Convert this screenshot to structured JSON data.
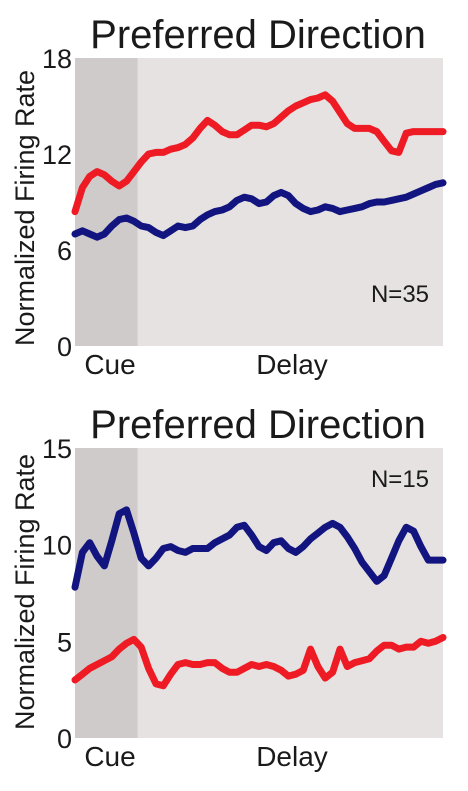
{
  "colors": {
    "panel_bg": "#e6e2e1",
    "cue_bg": "#cfcbca",
    "red": "#ee1b24",
    "blue": "#12157f",
    "text": "#1a1a1a"
  },
  "chart_data": [
    {
      "type": "line",
      "title": "Preferred Direction",
      "ylabel": "Normalized Firing Rate",
      "xlabel": "",
      "ylim": [
        0,
        18
      ],
      "yticks": [
        "0",
        "6",
        "12",
        "18"
      ],
      "xlim": [
        0,
        100
      ],
      "epochs": [
        {
          "label": "Cue",
          "x_start": 0,
          "x_end": 17,
          "shaded": true
        },
        {
          "label": "Delay",
          "x_start": 17,
          "x_end": 100,
          "shaded": false
        }
      ],
      "annotation": "N=35",
      "grid": false,
      "series": [
        {
          "color": "#ee1b24",
          "x": [
            0,
            2,
            4,
            6,
            8,
            10,
            12,
            14,
            16,
            18,
            20,
            22,
            24,
            26,
            28,
            30,
            32,
            34,
            36,
            38,
            40,
            42,
            44,
            46,
            48,
            50,
            52,
            54,
            56,
            58,
            60,
            62,
            64,
            66,
            68,
            70,
            72,
            74,
            76,
            78,
            80,
            82,
            84,
            86,
            88,
            90,
            92,
            94,
            96,
            98,
            100
          ],
          "values": [
            8.4,
            9.9,
            10.6,
            10.9,
            10.7,
            10.3,
            10.0,
            10.3,
            10.9,
            11.5,
            12.0,
            12.1,
            12.1,
            12.3,
            12.4,
            12.6,
            13.0,
            13.6,
            14.1,
            13.8,
            13.4,
            13.2,
            13.2,
            13.5,
            13.8,
            13.8,
            13.7,
            13.9,
            14.3,
            14.7,
            15.0,
            15.2,
            15.4,
            15.5,
            15.7,
            15.3,
            14.6,
            13.9,
            13.6,
            13.6,
            13.6,
            13.4,
            12.8,
            12.2,
            12.1,
            13.3,
            13.4,
            13.4,
            13.4,
            13.4,
            13.4
          ]
        },
        {
          "color": "#12157f",
          "x": [
            0,
            2,
            4,
            6,
            8,
            10,
            12,
            14,
            16,
            18,
            20,
            22,
            24,
            26,
            28,
            30,
            32,
            34,
            36,
            38,
            40,
            42,
            44,
            46,
            48,
            50,
            52,
            54,
            56,
            58,
            60,
            62,
            64,
            66,
            68,
            70,
            72,
            74,
            76,
            78,
            80,
            82,
            84,
            86,
            88,
            90,
            92,
            94,
            96,
            98,
            100
          ],
          "values": [
            7.0,
            7.2,
            7.0,
            6.8,
            7.0,
            7.5,
            7.9,
            8.0,
            7.8,
            7.5,
            7.4,
            7.1,
            6.9,
            7.2,
            7.5,
            7.4,
            7.5,
            7.9,
            8.2,
            8.4,
            8.5,
            8.7,
            9.1,
            9.3,
            9.2,
            8.9,
            9.0,
            9.4,
            9.6,
            9.4,
            8.9,
            8.6,
            8.4,
            8.5,
            8.7,
            8.6,
            8.4,
            8.5,
            8.6,
            8.7,
            8.9,
            9.0,
            9.0,
            9.1,
            9.2,
            9.3,
            9.5,
            9.7,
            9.9,
            10.1,
            10.2
          ]
        }
      ]
    },
    {
      "type": "line",
      "title": "Preferred Direction",
      "ylabel": "Normalized Firing Rate",
      "xlabel": "",
      "ylim": [
        0,
        15
      ],
      "yticks": [
        "0",
        "5",
        "10",
        "15"
      ],
      "xlim": [
        0,
        100
      ],
      "epochs": [
        {
          "label": "Cue",
          "x_start": 0,
          "x_end": 17,
          "shaded": true
        },
        {
          "label": "Delay",
          "x_start": 17,
          "x_end": 100,
          "shaded": false
        }
      ],
      "annotation": "N=15",
      "grid": false,
      "series": [
        {
          "color": "#12157f",
          "x": [
            0,
            2,
            4,
            6,
            8,
            10,
            12,
            14,
            16,
            18,
            20,
            22,
            24,
            26,
            28,
            30,
            32,
            34,
            36,
            38,
            40,
            42,
            44,
            46,
            48,
            50,
            52,
            54,
            56,
            58,
            60,
            62,
            64,
            66,
            68,
            70,
            72,
            74,
            76,
            78,
            80,
            82,
            84,
            86,
            88,
            90,
            92,
            94,
            96,
            98,
            100
          ],
          "values": [
            7.8,
            9.6,
            10.1,
            9.4,
            8.9,
            10.2,
            11.6,
            11.8,
            10.6,
            9.3,
            8.9,
            9.3,
            9.8,
            9.9,
            9.7,
            9.6,
            9.8,
            9.8,
            9.8,
            10.1,
            10.3,
            10.5,
            10.9,
            11.0,
            10.5,
            9.9,
            9.7,
            10.1,
            10.2,
            9.8,
            9.6,
            9.9,
            10.3,
            10.6,
            10.9,
            11.1,
            10.9,
            10.4,
            9.8,
            9.1,
            8.6,
            8.1,
            8.4,
            9.3,
            10.2,
            10.9,
            10.7,
            9.9,
            9.2,
            9.2,
            9.2
          ]
        },
        {
          "color": "#ee1b24",
          "x": [
            0,
            2,
            4,
            6,
            8,
            10,
            12,
            14,
            16,
            18,
            20,
            22,
            24,
            26,
            28,
            30,
            32,
            34,
            36,
            38,
            40,
            42,
            44,
            46,
            48,
            50,
            52,
            54,
            56,
            58,
            60,
            62,
            64,
            66,
            68,
            70,
            72,
            74,
            76,
            78,
            80,
            82,
            84,
            86,
            88,
            90,
            92,
            94,
            96,
            98,
            100
          ],
          "values": [
            3.0,
            3.3,
            3.6,
            3.8,
            4.0,
            4.2,
            4.6,
            4.9,
            5.1,
            4.7,
            3.6,
            2.8,
            2.7,
            3.3,
            3.8,
            3.9,
            3.8,
            3.8,
            3.9,
            3.9,
            3.6,
            3.4,
            3.4,
            3.6,
            3.8,
            3.7,
            3.8,
            3.7,
            3.5,
            3.2,
            3.3,
            3.5,
            4.6,
            3.7,
            3.1,
            3.4,
            4.6,
            3.7,
            3.9,
            4.0,
            4.1,
            4.5,
            4.8,
            4.8,
            4.6,
            4.7,
            4.7,
            5.0,
            4.9,
            5.0,
            5.2
          ]
        }
      ]
    }
  ]
}
